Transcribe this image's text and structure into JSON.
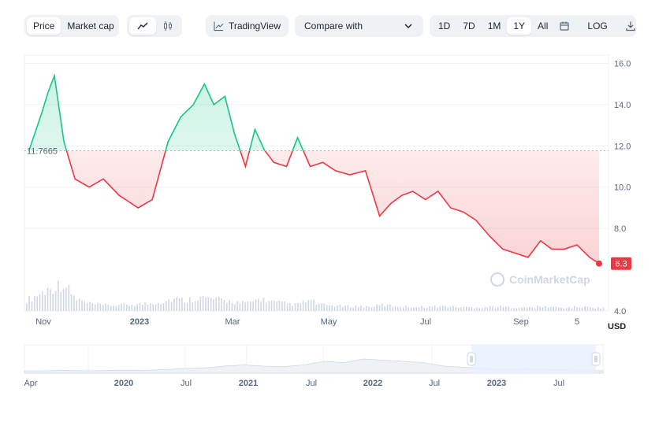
{
  "toolbar": {
    "price_label": "Price",
    "marketcap_label": "Market cap",
    "tradingview_label": "TradingView",
    "compare_label": "Compare with",
    "ranges": [
      "1D",
      "7D",
      "1M",
      "1Y",
      "All"
    ],
    "active_range": "1Y",
    "log_label": "LOG",
    "icons": [
      "line-chart-icon",
      "candlestick-icon",
      "chart-line-icon",
      "chevron-down-icon",
      "calendar-icon",
      "download-icon"
    ]
  },
  "chart_data": {
    "type": "area",
    "baseline": 11.7665,
    "baseline_label": "11.7665",
    "current_value": 6.3,
    "current_label": "6.3",
    "currency": "USD",
    "ylim": [
      4.0,
      16.4
    ],
    "y_ticks": [
      "16.0",
      "14.0",
      "12.0",
      "10.0",
      "8.0",
      "4.0"
    ],
    "x_ticks": [
      {
        "label": "Nov",
        "bold": false
      },
      {
        "label": "2023",
        "bold": true
      },
      {
        "label": "Mar",
        "bold": false
      },
      {
        "label": "May",
        "bold": false
      },
      {
        "label": "Jul",
        "bold": false
      },
      {
        "label": "Sep",
        "bold": false
      },
      {
        "label": "5",
        "bold": false
      }
    ],
    "x": [
      "2022-10-24",
      "2022-11-01",
      "2022-11-05",
      "2022-11-09",
      "2022-11-15",
      "2022-11-22",
      "2022-12-01",
      "2022-12-10",
      "2022-12-20",
      "2023-01-01",
      "2023-01-10",
      "2023-01-20",
      "2023-01-28",
      "2023-02-05",
      "2023-02-12",
      "2023-02-18",
      "2023-02-25",
      "2023-03-03",
      "2023-03-10",
      "2023-03-16",
      "2023-03-22",
      "2023-03-28",
      "2023-04-05",
      "2023-04-12",
      "2023-04-20",
      "2023-04-28",
      "2023-05-06",
      "2023-05-15",
      "2023-05-25",
      "2023-06-03",
      "2023-06-10",
      "2023-06-17",
      "2023-06-24",
      "2023-07-02",
      "2023-07-10",
      "2023-07-18",
      "2023-07-26",
      "2023-08-03",
      "2023-08-12",
      "2023-08-20",
      "2023-08-28",
      "2023-09-05",
      "2023-09-13",
      "2023-09-20",
      "2023-09-28",
      "2023-10-06",
      "2023-10-14",
      "2023-10-20"
    ],
    "values": [
      11.8,
      13.6,
      14.6,
      15.4,
      12.2,
      10.4,
      10.0,
      10.4,
      9.6,
      9.0,
      9.4,
      12.2,
      13.4,
      14.0,
      15.0,
      14.0,
      14.4,
      12.6,
      11.0,
      12.8,
      11.8,
      11.2,
      11.0,
      12.4,
      11.0,
      11.2,
      10.8,
      10.6,
      10.8,
      8.6,
      9.2,
      9.6,
      9.8,
      9.4,
      9.8,
      9.0,
      8.8,
      8.4,
      7.6,
      7.0,
      6.8,
      6.6,
      7.4,
      7.0,
      7.0,
      7.2,
      6.6,
      6.3
    ],
    "volume": [
      0.35,
      0.55,
      0.75,
      0.9,
      0.4,
      0.25,
      0.2,
      0.18,
      0.2,
      0.22,
      0.25,
      0.3,
      0.4,
      0.35,
      0.45,
      0.4,
      0.35,
      0.3,
      0.25,
      0.4,
      0.3,
      0.25,
      0.2,
      0.35,
      0.2,
      0.18,
      0.15,
      0.15,
      0.14,
      0.2,
      0.16,
      0.14,
      0.13,
      0.14,
      0.15,
      0.13,
      0.12,
      0.12,
      0.14,
      0.13,
      0.12,
      0.11,
      0.15,
      0.12,
      0.11,
      0.14,
      0.12,
      0.1
    ],
    "navigator": {
      "x_ticks": [
        {
          "label": "Apr",
          "bold": false
        },
        {
          "label": "2020",
          "bold": true
        },
        {
          "label": "Jul",
          "bold": false
        },
        {
          "label": "2021",
          "bold": true
        },
        {
          "label": "Jul",
          "bold": false
        },
        {
          "label": "2022",
          "bold": true
        },
        {
          "label": "Jul",
          "bold": false
        },
        {
          "label": "2023",
          "bold": true
        },
        {
          "label": "Jul",
          "bold": false
        }
      ]
    },
    "watermark": "CoinMarketCap",
    "grid": true,
    "colors": {
      "up": "#16c784",
      "down": "#ea3943",
      "window": "#e8efff",
      "axis": "#58667e"
    }
  }
}
